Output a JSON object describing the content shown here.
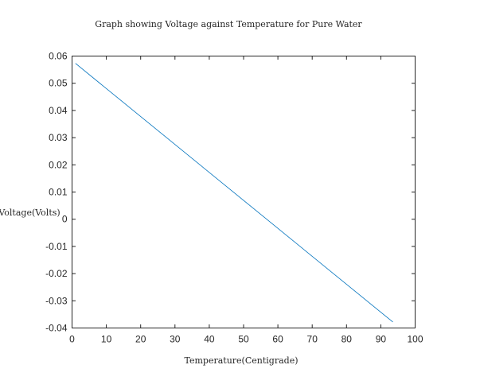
{
  "chart_data": {
    "type": "line",
    "title": "Graph showing Voltage against Temperature for Pure Water",
    "xlabel": "Temperature(Centigrade)",
    "ylabel": "Voltage(Volts)",
    "xlim": [
      0,
      100
    ],
    "ylim": [
      -0.04,
      0.06
    ],
    "xticks": [
      0,
      10,
      20,
      30,
      40,
      50,
      60,
      70,
      80,
      90,
      100
    ],
    "xtick_labels": [
      "0",
      "10",
      "20",
      "30",
      "40",
      "50",
      "60",
      "70",
      "80",
      "90",
      "100"
    ],
    "yticks": [
      -0.04,
      -0.03,
      -0.02,
      -0.01,
      0,
      0.01,
      0.02,
      0.03,
      0.04,
      0.05,
      0.06
    ],
    "ytick_labels": [
      "-0.04",
      "-0.03",
      "-0.02",
      "-0.01",
      "0",
      "0.01",
      "0.02",
      "0.03",
      "0.04",
      "0.05",
      "0.06"
    ],
    "grid": false,
    "series": [
      {
        "color": "#0072BD",
        "x": [
          1,
          93.5
        ],
        "y": [
          0.0573,
          -0.0378
        ]
      }
    ]
  }
}
